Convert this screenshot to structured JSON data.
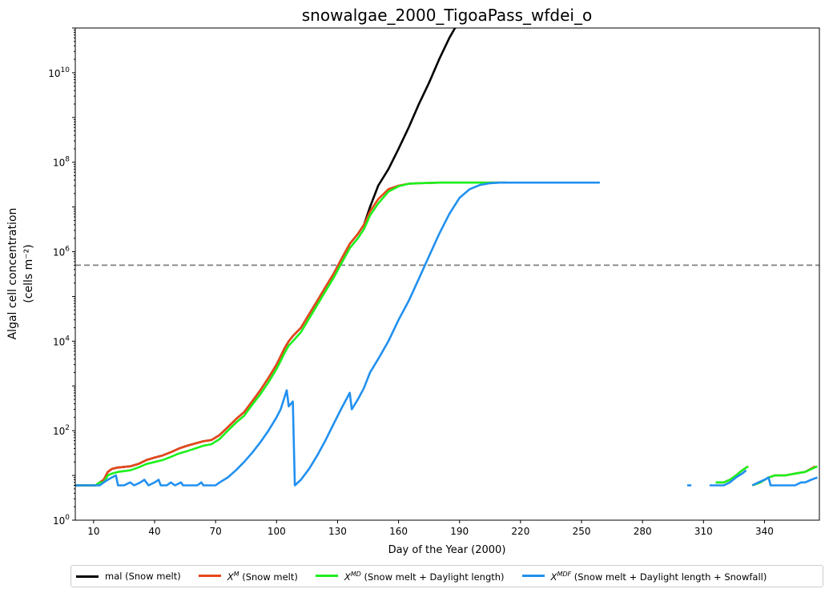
{
  "chart_data": {
    "type": "line",
    "title": "snowalgae_2000_TigoaPass_wfdei_o",
    "xlabel": "Day of the Year (2000)",
    "ylabel_line1": "Algal cell concentration",
    "ylabel_line2": "(cells m⁻²)",
    "xlim": [
      1,
      367
    ],
    "ylim": [
      1,
      100000000000
    ],
    "yscale": "log",
    "x_ticks": [
      10,
      40,
      70,
      100,
      130,
      160,
      190,
      220,
      250,
      280,
      310,
      340
    ],
    "y_ticks": [
      {
        "value": 1,
        "base": "10",
        "exp": "0"
      },
      {
        "value": 100,
        "base": "10",
        "exp": "2"
      },
      {
        "value": 10000,
        "base": "10",
        "exp": "4"
      },
      {
        "value": 1000000,
        "base": "10",
        "exp": "6"
      },
      {
        "value": 100000000,
        "base": "10",
        "exp": "8"
      },
      {
        "value": 10000000000,
        "base": "10",
        "exp": "10"
      }
    ],
    "threshold_line": {
      "y": 500000,
      "color": "#808080",
      "style": "dashed"
    },
    "grid": false,
    "legend_position": "bottom",
    "series": [
      {
        "key": "mal",
        "legend": {
          "prefix": "mal (Snow melt)",
          "sym": "",
          "sup": "",
          "suffix": ""
        },
        "color": "#000000",
        "segments": [
          [
            [
              1,
              6
            ],
            [
              11,
              6
            ],
            [
              13,
              7
            ],
            [
              15,
              8
            ],
            [
              17,
              12
            ],
            [
              19,
              14
            ],
            [
              22,
              15
            ],
            [
              28,
              16
            ],
            [
              32,
              18
            ],
            [
              36,
              22
            ],
            [
              40,
              25
            ],
            [
              44,
              28
            ],
            [
              48,
              33
            ],
            [
              52,
              40
            ],
            [
              56,
              46
            ],
            [
              60,
              52
            ],
            [
              64,
              58
            ],
            [
              68,
              62
            ],
            [
              72,
              80
            ],
            [
              76,
              120
            ],
            [
              80,
              180
            ],
            [
              84,
              260
            ],
            [
              88,
              450
            ],
            [
              92,
              800
            ],
            [
              96,
              1500
            ],
            [
              100,
              3000
            ],
            [
              104,
              7000
            ],
            [
              106,
              10000
            ],
            [
              108,
              13000
            ],
            [
              112,
              20000
            ],
            [
              116,
              40000
            ],
            [
              120,
              80000
            ],
            [
              124,
              160000
            ],
            [
              128,
              320000
            ],
            [
              132,
              700000
            ],
            [
              136,
              1500000
            ],
            [
              140,
              2500000
            ],
            [
              143,
              4000000
            ],
            [
              146,
              10000000
            ],
            [
              150,
              30000000
            ],
            [
              155,
              70000000
            ],
            [
              160,
              200000000
            ],
            [
              165,
              600000000
            ],
            [
              170,
              2000000000
            ],
            [
              175,
              6000000000
            ],
            [
              180,
              20000000000
            ],
            [
              185,
              60000000000
            ],
            [
              190,
              150000000000
            ]
          ]
        ]
      },
      {
        "key": "xm",
        "legend": {
          "prefix": "",
          "sym": "X",
          "sup": "M",
          "suffix": " (Snow melt)"
        },
        "color": "#e8471b",
        "segments": [
          [
            [
              1,
              6
            ],
            [
              11,
              6
            ],
            [
              13,
              7
            ],
            [
              15,
              8
            ],
            [
              17,
              12
            ],
            [
              19,
              14
            ],
            [
              22,
              15
            ],
            [
              28,
              16
            ],
            [
              32,
              18
            ],
            [
              36,
              22
            ],
            [
              40,
              25
            ],
            [
              44,
              28
            ],
            [
              48,
              33
            ],
            [
              52,
              40
            ],
            [
              56,
              46
            ],
            [
              60,
              52
            ],
            [
              64,
              58
            ],
            [
              68,
              62
            ],
            [
              72,
              80
            ],
            [
              76,
              120
            ],
            [
              80,
              180
            ],
            [
              84,
              260
            ],
            [
              88,
              450
            ],
            [
              92,
              800
            ],
            [
              96,
              1500
            ],
            [
              100,
              3000
            ],
            [
              104,
              7000
            ],
            [
              106,
              10000
            ],
            [
              108,
              13000
            ],
            [
              112,
              20000
            ],
            [
              116,
              40000
            ],
            [
              120,
              80000
            ],
            [
              124,
              160000
            ],
            [
              128,
              320000
            ],
            [
              132,
              700000
            ],
            [
              136,
              1500000
            ],
            [
              140,
              2500000
            ],
            [
              143,
              4000000
            ],
            [
              146,
              8000000
            ],
            [
              150,
              15000000
            ],
            [
              155,
              25000000
            ],
            [
              160,
              30000000
            ],
            [
              165,
              33000000
            ],
            [
              170,
              34000000
            ],
            [
              180,
              35000000
            ],
            [
              200,
              35000000
            ],
            [
              213,
              35000000
            ]
          ],
          [
            [
              316,
              7
            ],
            [
              320,
              7
            ],
            [
              323,
              8
            ],
            [
              326,
              10
            ],
            [
              329,
              13
            ],
            [
              332,
              16
            ]
          ],
          [
            [
              334,
              6
            ],
            [
              338,
              7
            ],
            [
              342,
              9
            ],
            [
              345,
              10
            ],
            [
              350,
              10
            ],
            [
              355,
              11
            ],
            [
              360,
              12
            ],
            [
              365,
              16
            ]
          ]
        ]
      },
      {
        "key": "xmd",
        "legend": {
          "prefix": "",
          "sym": "X",
          "sup": "MD",
          "suffix": " (Snow melt + Daylight length)"
        },
        "color": "#1cf01c",
        "segments": [
          [
            [
              1,
              6
            ],
            [
              11,
              6
            ],
            [
              13,
              7
            ],
            [
              15,
              7
            ],
            [
              17,
              10
            ],
            [
              19,
              11
            ],
            [
              22,
              12
            ],
            [
              28,
              13
            ],
            [
              32,
              15
            ],
            [
              36,
              18
            ],
            [
              40,
              20
            ],
            [
              44,
              22
            ],
            [
              48,
              26
            ],
            [
              52,
              31
            ],
            [
              56,
              35
            ],
            [
              60,
              40
            ],
            [
              64,
              46
            ],
            [
              68,
              50
            ],
            [
              72,
              65
            ],
            [
              76,
              100
            ],
            [
              80,
              150
            ],
            [
              84,
              215
            ],
            [
              88,
              380
            ],
            [
              92,
              650
            ],
            [
              96,
              1200
            ],
            [
              100,
              2400
            ],
            [
              104,
              5500
            ],
            [
              106,
              8000
            ],
            [
              108,
              10000
            ],
            [
              112,
              16000
            ],
            [
              116,
              32000
            ],
            [
              120,
              65000
            ],
            [
              124,
              130000
            ],
            [
              128,
              260000
            ],
            [
              132,
              560000
            ],
            [
              136,
              1200000
            ],
            [
              140,
              2000000
            ],
            [
              143,
              3200000
            ],
            [
              146,
              6500000
            ],
            [
              150,
              12000000
            ],
            [
              155,
              22000000
            ],
            [
              160,
              29000000
            ],
            [
              165,
              33000000
            ],
            [
              170,
              34000000
            ],
            [
              180,
              35000000
            ],
            [
              200,
              35000000
            ],
            [
              213,
              35000000
            ]
          ],
          [
            [
              316,
              7
            ],
            [
              320,
              7
            ],
            [
              323,
              8
            ],
            [
              326,
              10
            ],
            [
              329,
              13
            ],
            [
              332,
              16
            ]
          ],
          [
            [
              334,
              6
            ],
            [
              338,
              7
            ],
            [
              342,
              9
            ],
            [
              345,
              10
            ],
            [
              350,
              10
            ],
            [
              355,
              11
            ],
            [
              360,
              12
            ],
            [
              366,
              16
            ]
          ]
        ]
      },
      {
        "key": "xmdf",
        "legend": {
          "prefix": "",
          "sym": "X",
          "sup": "MDF",
          "suffix": " (Snow melt + Daylight length + Snowfall)"
        },
        "color": "#2190f0",
        "segments": [
          [
            [
              1,
              6
            ],
            [
              11,
              6
            ],
            [
              13,
              6
            ],
            [
              15,
              7
            ],
            [
              17,
              8
            ],
            [
              19,
              9
            ],
            [
              21,
              10
            ],
            [
              22,
              6
            ],
            [
              25,
              6
            ],
            [
              28,
              7
            ],
            [
              30,
              6
            ],
            [
              33,
              7
            ],
            [
              35,
              8
            ],
            [
              37,
              6
            ],
            [
              40,
              7
            ],
            [
              42,
              8
            ],
            [
              43,
              6
            ],
            [
              46,
              6
            ],
            [
              48,
              7
            ],
            [
              50,
              6
            ],
            [
              53,
              7
            ],
            [
              54,
              6
            ],
            [
              58,
              6
            ],
            [
              61,
              6
            ],
            [
              63,
              7
            ],
            [
              64,
              6
            ],
            [
              70,
              6
            ],
            [
              72,
              7
            ],
            [
              76,
              9
            ],
            [
              80,
              13
            ],
            [
              84,
              20
            ],
            [
              88,
              32
            ],
            [
              92,
              55
            ],
            [
              96,
              100
            ],
            [
              100,
              200
            ],
            [
              102,
              300
            ],
            [
              105,
              800
            ],
            [
              106,
              350
            ],
            [
              108,
              450
            ],
            [
              109,
              6
            ],
            [
              112,
              8
            ],
            [
              116,
              14
            ],
            [
              120,
              28
            ],
            [
              124,
              60
            ],
            [
              128,
              140
            ],
            [
              132,
              320
            ],
            [
              136,
              700
            ],
            [
              137,
              300
            ],
            [
              140,
              500
            ],
            [
              143,
              900
            ],
            [
              146,
              2000
            ],
            [
              150,
              4000
            ],
            [
              155,
              10000
            ],
            [
              160,
              30000
            ],
            [
              165,
              80000
            ],
            [
              170,
              250000
            ],
            [
              175,
              800000
            ],
            [
              180,
              2500000
            ],
            [
              185,
              7000000
            ],
            [
              190,
              16000000
            ],
            [
              195,
              25000000
            ],
            [
              200,
              31000000
            ],
            [
              205,
              34000000
            ],
            [
              210,
              35000000
            ],
            [
              220,
              35000000
            ],
            [
              240,
              35000000
            ],
            [
              259,
              35000000
            ]
          ],
          [
            [
              302,
              6
            ],
            [
              304,
              6
            ]
          ],
          [
            [
              313,
              6
            ],
            [
              316,
              6
            ],
            [
              320,
              6
            ],
            [
              323,
              7
            ],
            [
              326,
              9
            ],
            [
              329,
              11
            ],
            [
              331,
              13
            ]
          ],
          [
            [
              334,
              6
            ],
            [
              337,
              7
            ],
            [
              340,
              8
            ],
            [
              342,
              9
            ],
            [
              343,
              6
            ],
            [
              350,
              6
            ],
            [
              355,
              6
            ],
            [
              358,
              7
            ],
            [
              360,
              7
            ],
            [
              363,
              8
            ],
            [
              366,
              9
            ]
          ]
        ]
      }
    ]
  }
}
